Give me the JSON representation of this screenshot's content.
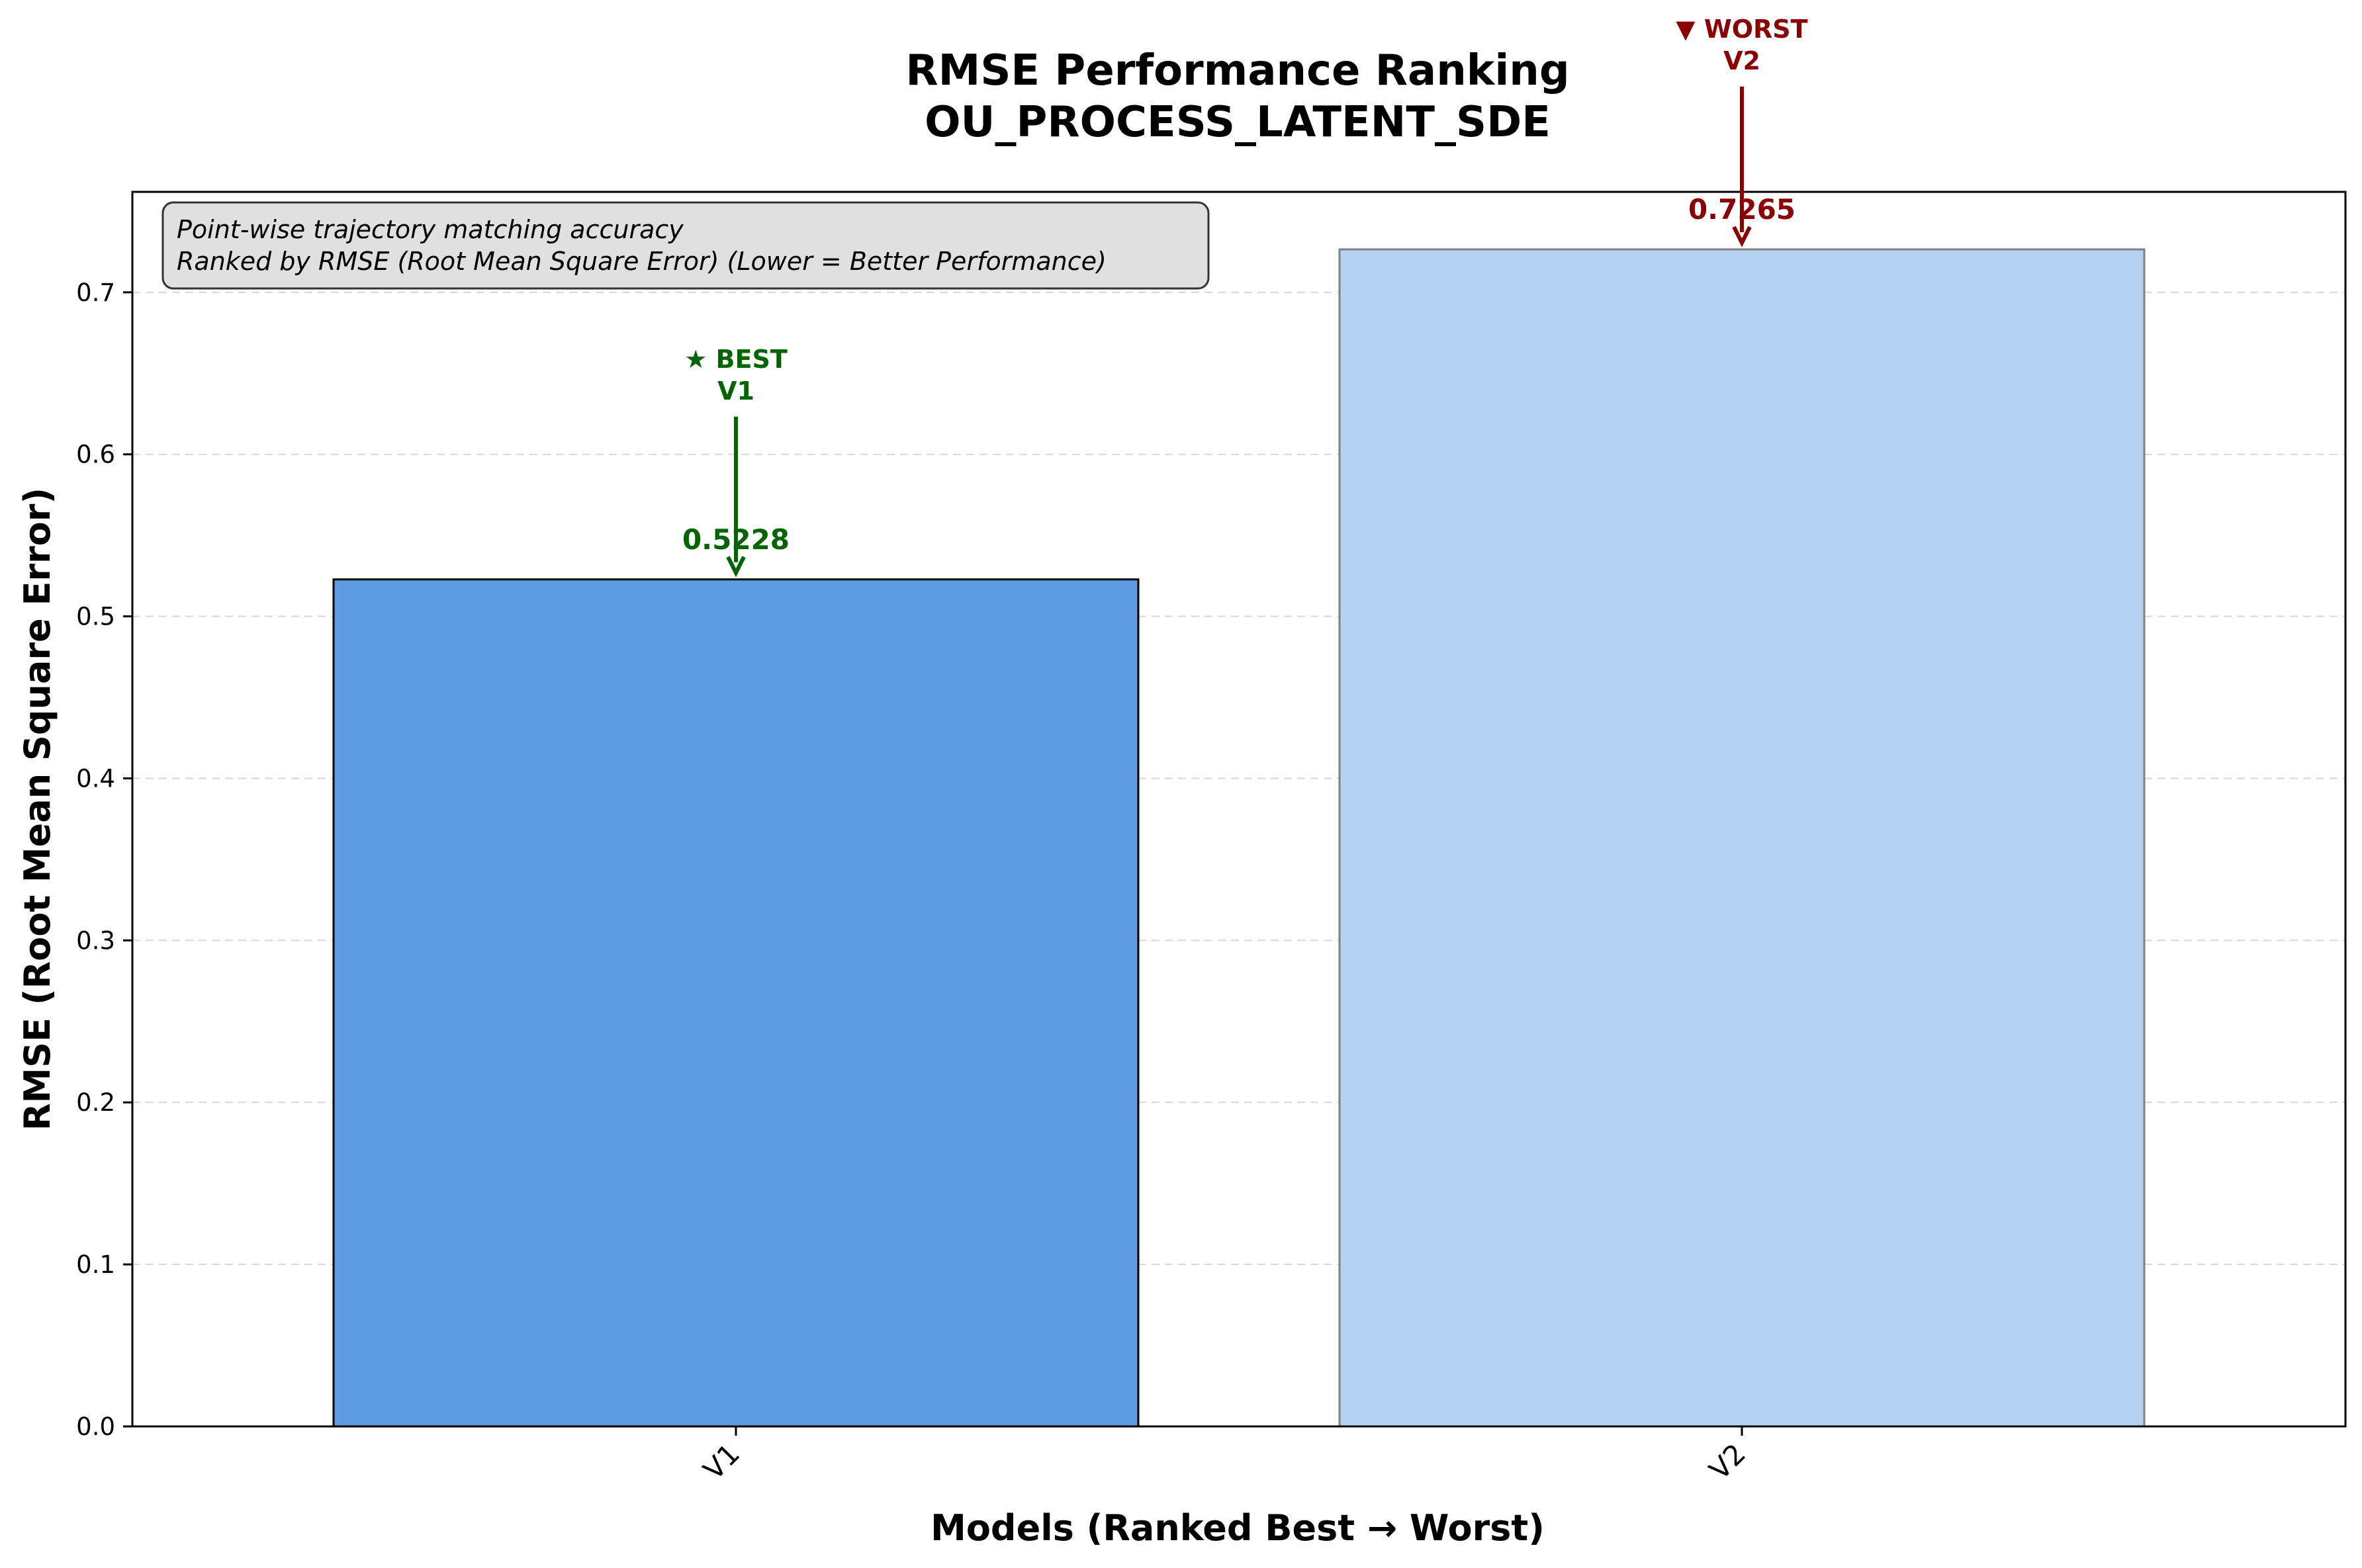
{
  "chart_data": {
    "type": "bar",
    "title": "RMSE Performance Ranking",
    "subtitle": "OU_PROCESS_LATENT_SDE",
    "xlabel": "Models (Ranked Best → Worst)",
    "ylabel": "RMSE (Root Mean Square Error)",
    "categories": [
      "V1",
      "V2"
    ],
    "values": [
      0.5228,
      0.7265
    ],
    "value_labels": [
      "0.5228",
      "0.7265"
    ],
    "bar_colors": [
      "#5e9be2",
      "#b3d1f1"
    ],
    "bar_edge_colors": [
      "#000000",
      "#808080"
    ],
    "ylim": [
      0,
      0.762
    ],
    "yticks": [
      0.0,
      0.1,
      0.2,
      0.3,
      0.4,
      0.5,
      0.6,
      0.7
    ],
    "ytick_labels": [
      "0.0",
      "0.1",
      "0.2",
      "0.3",
      "0.4",
      "0.5",
      "0.6",
      "0.7"
    ],
    "grid": "horizontal dashed",
    "info_box": {
      "line1": "Point-wise trajectory matching accuracy",
      "line2": "Ranked by RMSE (Root Mean Square Error) (Lower = Better Performance)"
    },
    "annotations": {
      "best": {
        "line1": "★ BEST",
        "line2": "V1",
        "category_index": 0,
        "color": "#006400"
      },
      "worst": {
        "line1": "▼ WORST",
        "line2": "V2",
        "category_index": 1,
        "color": "#8b0000"
      }
    }
  }
}
